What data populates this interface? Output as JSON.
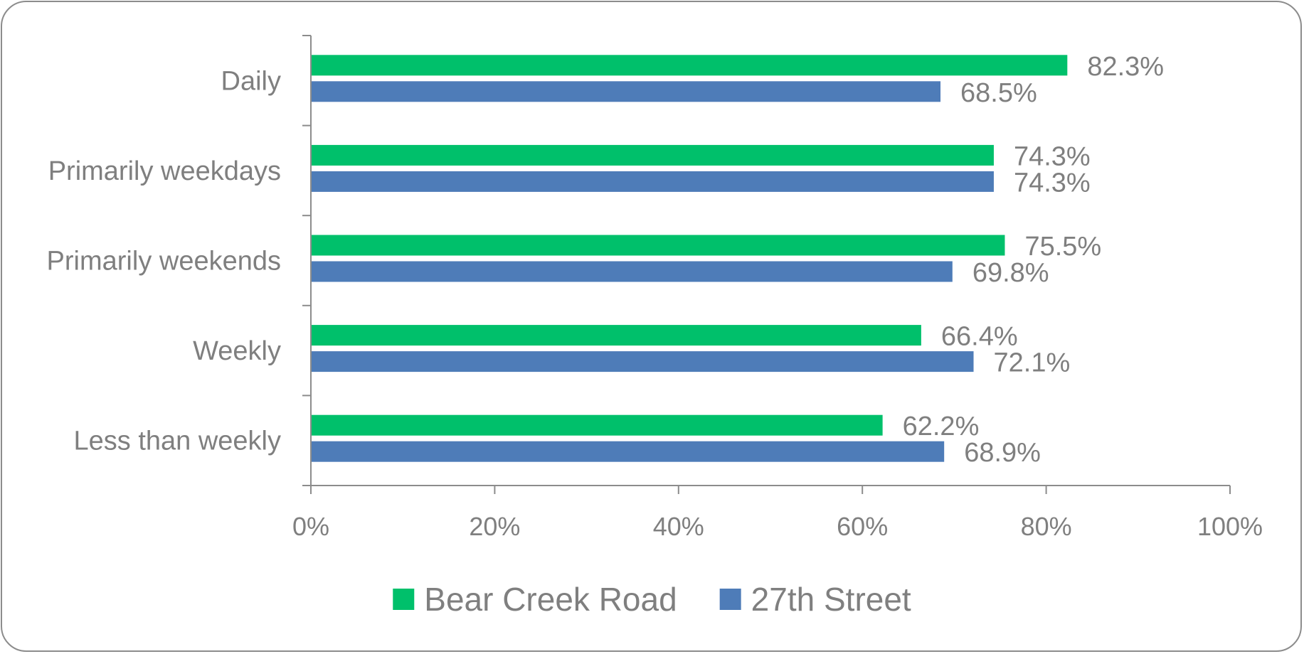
{
  "chart_data": {
    "type": "bar",
    "orientation": "horizontal",
    "categories": [
      "Daily",
      "Primarily weekdays",
      "Primarily weekends",
      "Weekly",
      "Less than weekly"
    ],
    "series": [
      {
        "name": "Bear Creek Road",
        "color": "#00c06b",
        "values": [
          82.3,
          74.3,
          75.5,
          66.4,
          62.2
        ],
        "labels": [
          "82.3%",
          "74.3%",
          "75.5%",
          "66.4%",
          "62.2%"
        ]
      },
      {
        "name": "27th Street",
        "color": "#4e7cb8",
        "values": [
          68.5,
          74.3,
          69.8,
          72.1,
          68.9
        ],
        "labels": [
          "68.5%",
          "74.3%",
          "69.8%",
          "72.1%",
          "68.9%"
        ]
      }
    ],
    "xlim": [
      0,
      100
    ],
    "xticks": [
      0,
      20,
      40,
      60,
      80,
      100
    ],
    "xtick_labels": [
      "0%",
      "20%",
      "40%",
      "60%",
      "80%",
      "100%"
    ],
    "grid": false,
    "legend_position": "bottom",
    "title": "",
    "xlabel": "",
    "ylabel": ""
  }
}
